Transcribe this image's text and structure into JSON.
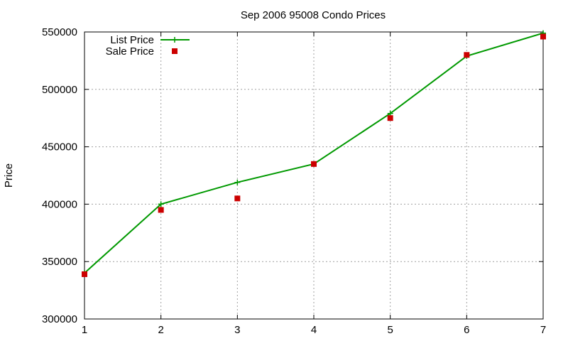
{
  "chart_data": {
    "type": "line",
    "title": "Sep 2006 95008 Condo Prices",
    "xlabel": "",
    "ylabel": "Price",
    "xlim": [
      1,
      7
    ],
    "ylim": [
      300000,
      550000
    ],
    "x_ticks": [
      1,
      2,
      3,
      4,
      5,
      6,
      7
    ],
    "y_ticks": [
      300000,
      350000,
      400000,
      450000,
      500000,
      550000
    ],
    "grid": true,
    "legend_position": "top-left",
    "series": [
      {
        "name": "List Price",
        "style": "line-plus",
        "color": "#009900",
        "x": [
          1,
          2,
          3,
          4,
          5,
          6,
          7
        ],
        "y": [
          340000,
          400000,
          419000,
          435000,
          479000,
          529000,
          549000
        ]
      },
      {
        "name": "Sale Price",
        "style": "square-points",
        "color": "#cc0000",
        "x": [
          1,
          2,
          3,
          4,
          5,
          6,
          7
        ],
        "y": [
          339000,
          395000,
          405000,
          435000,
          475000,
          530000,
          546000
        ]
      }
    ]
  }
}
